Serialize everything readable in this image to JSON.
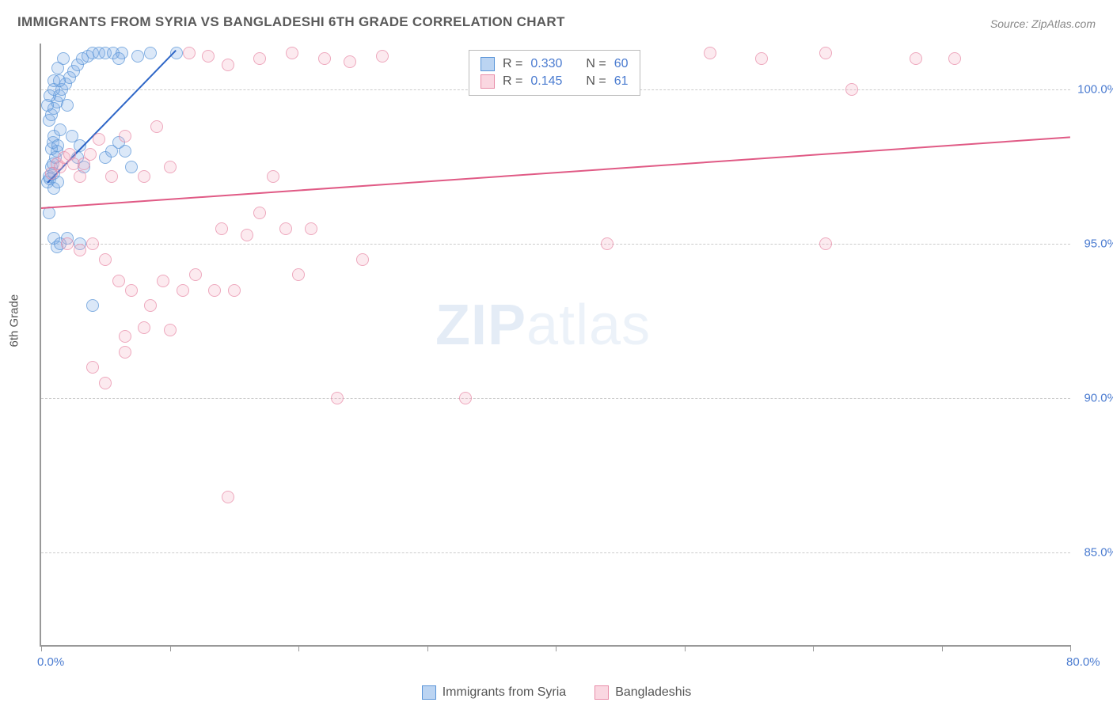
{
  "title": "IMMIGRANTS FROM SYRIA VS BANGLADESHI 6TH GRADE CORRELATION CHART",
  "source": "Source: ZipAtlas.com",
  "y_axis_label": "6th Grade",
  "watermark_bold": "ZIP",
  "watermark_rest": "atlas",
  "chart": {
    "type": "scatter",
    "xlim": [
      0,
      80
    ],
    "ylim": [
      82,
      101.5
    ],
    "x_ticks": [
      0,
      10,
      20,
      30,
      40,
      50,
      60,
      70,
      80
    ],
    "y_gridlines": [
      85,
      90,
      95,
      100
    ],
    "x_labels": {
      "0": "0.0%",
      "80": "80.0%"
    },
    "y_labels": {
      "85": "85.0%",
      "90": "90.0%",
      "95": "95.0%",
      "100": "100.0%"
    },
    "background_color": "#ffffff",
    "grid_color": "#cccccc",
    "axis_color": "#999999",
    "tick_label_color": "#4a7bd0",
    "marker_radius": 7,
    "series": [
      {
        "name": "Immigrants from Syria",
        "color_fill": "rgba(120,170,230,0.35)",
        "color_stroke": "#5a95d8",
        "class": "blue",
        "R": "0.330",
        "N": "60",
        "trend": {
          "x1": 0.5,
          "y1": 97.0,
          "x2": 10.5,
          "y2": 101.3,
          "color": "#2e66c7",
          "width": 2
        },
        "points": [
          [
            0.5,
            97.0
          ],
          [
            0.6,
            97.2
          ],
          [
            0.7,
            97.1
          ],
          [
            0.8,
            97.5
          ],
          [
            0.9,
            97.6
          ],
          [
            1.0,
            97.3
          ],
          [
            1.1,
            97.8
          ],
          [
            1.2,
            98.0
          ],
          [
            0.8,
            98.1
          ],
          [
            0.9,
            98.3
          ],
          [
            1.0,
            98.5
          ],
          [
            1.3,
            98.2
          ],
          [
            1.5,
            98.7
          ],
          [
            0.6,
            99.0
          ],
          [
            0.8,
            99.2
          ],
          [
            1.0,
            99.4
          ],
          [
            1.2,
            99.6
          ],
          [
            1.4,
            99.8
          ],
          [
            1.6,
            100.0
          ],
          [
            1.9,
            100.2
          ],
          [
            2.2,
            100.4
          ],
          [
            2.5,
            100.6
          ],
          [
            2.8,
            100.8
          ],
          [
            3.2,
            101.0
          ],
          [
            3.6,
            101.1
          ],
          [
            4.0,
            101.2
          ],
          [
            4.5,
            101.2
          ],
          [
            5.0,
            101.2
          ],
          [
            5.6,
            101.2
          ],
          [
            6.3,
            101.2
          ],
          [
            10.5,
            101.2
          ],
          [
            1.0,
            100.3
          ],
          [
            1.3,
            100.7
          ],
          [
            1.7,
            101.0
          ],
          [
            0.5,
            99.5
          ],
          [
            0.7,
            99.8
          ],
          [
            1.0,
            100.0
          ],
          [
            1.4,
            100.3
          ],
          [
            2.0,
            99.5
          ],
          [
            2.4,
            98.5
          ],
          [
            2.8,
            97.8
          ],
          [
            3.0,
            98.2
          ],
          [
            3.3,
            97.5
          ],
          [
            1.0,
            96.8
          ],
          [
            1.3,
            97.0
          ],
          [
            0.6,
            96.0
          ],
          [
            1.0,
            95.2
          ],
          [
            1.2,
            94.9
          ],
          [
            1.5,
            95.0
          ],
          [
            2.0,
            95.2
          ],
          [
            3.0,
            95.0
          ],
          [
            4.0,
            93.0
          ],
          [
            5.0,
            97.8
          ],
          [
            5.5,
            98.0
          ],
          [
            6.0,
            98.3
          ],
          [
            6.5,
            98.0
          ],
          [
            7.0,
            97.5
          ],
          [
            6.0,
            101.0
          ],
          [
            7.5,
            101.1
          ],
          [
            8.5,
            101.2
          ]
        ]
      },
      {
        "name": "Bangladeshis",
        "color_fill": "rgba(245,175,195,0.35)",
        "color_stroke": "#e88ca8",
        "class": "pink",
        "R": "0.145",
        "N": "61",
        "trend": {
          "x1": 0,
          "y1": 96.2,
          "x2": 80,
          "y2": 98.5,
          "color": "#e05a85",
          "width": 2
        },
        "points": [
          [
            0.8,
            97.3
          ],
          [
            1.2,
            97.6
          ],
          [
            1.5,
            97.5
          ],
          [
            1.8,
            97.8
          ],
          [
            2.2,
            97.9
          ],
          [
            2.5,
            97.6
          ],
          [
            3.0,
            97.2
          ],
          [
            3.3,
            97.6
          ],
          [
            3.8,
            97.9
          ],
          [
            4.5,
            98.4
          ],
          [
            5.5,
            97.2
          ],
          [
            6.5,
            98.5
          ],
          [
            8.0,
            97.2
          ],
          [
            9.0,
            98.8
          ],
          [
            10.0,
            97.5
          ],
          [
            11.5,
            101.2
          ],
          [
            13.0,
            101.1
          ],
          [
            14.5,
            100.8
          ],
          [
            17.0,
            101.0
          ],
          [
            19.5,
            101.2
          ],
          [
            22.0,
            101.0
          ],
          [
            24.0,
            100.9
          ],
          [
            26.5,
            101.1
          ],
          [
            45.0,
            101.0
          ],
          [
            52.0,
            101.2
          ],
          [
            56.0,
            101.0
          ],
          [
            61.0,
            101.2
          ],
          [
            68.0,
            101.0
          ],
          [
            71.0,
            101.0
          ],
          [
            2.0,
            95.0
          ],
          [
            3.0,
            94.8
          ],
          [
            4.0,
            95.0
          ],
          [
            5.0,
            94.5
          ],
          [
            6.0,
            93.8
          ],
          [
            6.5,
            92.0
          ],
          [
            7.0,
            93.5
          ],
          [
            8.0,
            92.3
          ],
          [
            8.5,
            93.0
          ],
          [
            9.5,
            93.8
          ],
          [
            10.0,
            92.2
          ],
          [
            11.0,
            93.5
          ],
          [
            12.0,
            94.0
          ],
          [
            13.5,
            93.5
          ],
          [
            14.0,
            95.5
          ],
          [
            15.0,
            93.5
          ],
          [
            16.0,
            95.3
          ],
          [
            17.0,
            96.0
          ],
          [
            18.0,
            97.2
          ],
          [
            19.0,
            95.5
          ],
          [
            20.0,
            94.0
          ],
          [
            21.0,
            95.5
          ],
          [
            25.0,
            94.5
          ],
          [
            14.5,
            86.8
          ],
          [
            23.0,
            90.0
          ],
          [
            33.0,
            90.0
          ],
          [
            44.0,
            95.0
          ],
          [
            61.0,
            95.0
          ],
          [
            63.0,
            100.0
          ],
          [
            4.0,
            91.0
          ],
          [
            5.0,
            90.5
          ],
          [
            6.5,
            91.5
          ]
        ]
      }
    ]
  },
  "stats_labels": {
    "R": "R =",
    "N": "N ="
  },
  "bottom_legend": [
    {
      "class": "blue",
      "label": "Immigrants from Syria"
    },
    {
      "class": "pink",
      "label": "Bangladeshis"
    }
  ]
}
